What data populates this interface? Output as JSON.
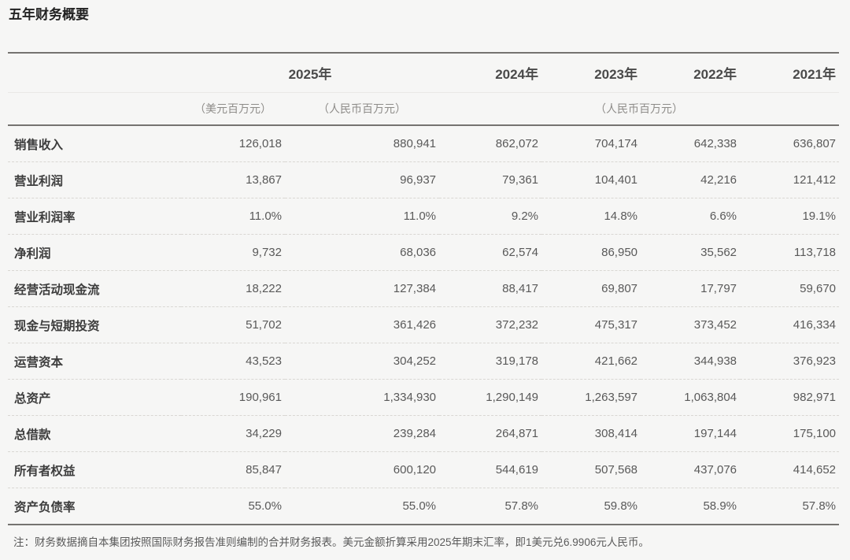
{
  "page": {
    "title": "五年财务概要"
  },
  "table": {
    "header": {
      "years": [
        "2025年",
        "2024年",
        "2023年",
        "2022年",
        "2021年"
      ],
      "units": {
        "usd": "（美元百万元）",
        "rmb_2025": "（人民币百万元）",
        "rmb_prior": "（人民币百万元）"
      }
    },
    "rows": [
      {
        "label": "销售收入",
        "values": [
          "126,018",
          "880,941",
          "862,072",
          "704,174",
          "642,338",
          "636,807"
        ]
      },
      {
        "label": "营业利润",
        "values": [
          "13,867",
          "96,937",
          "79,361",
          "104,401",
          "42,216",
          "121,412"
        ]
      },
      {
        "label": "营业利润率",
        "values": [
          "11.0%",
          "11.0%",
          "9.2%",
          "14.8%",
          "6.6%",
          "19.1%"
        ]
      },
      {
        "label": "净利润",
        "values": [
          "9,732",
          "68,036",
          "62,574",
          "86,950",
          "35,562",
          "113,718"
        ]
      },
      {
        "label": "经营活动现金流",
        "values": [
          "18,222",
          "127,384",
          "88,417",
          "69,807",
          "17,797",
          "59,670"
        ]
      },
      {
        "label": "现金与短期投资",
        "values": [
          "51,702",
          "361,426",
          "372,232",
          "475,317",
          "373,452",
          "416,334"
        ]
      },
      {
        "label": "运营资本",
        "values": [
          "43,523",
          "304,252",
          "319,178",
          "421,662",
          "344,938",
          "376,923"
        ]
      },
      {
        "label": "总资产",
        "values": [
          "190,961",
          "1,334,930",
          "1,290,149",
          "1,263,597",
          "1,063,804",
          "982,971"
        ]
      },
      {
        "label": "总借款",
        "values": [
          "34,229",
          "239,284",
          "264,871",
          "308,414",
          "197,144",
          "175,100"
        ]
      },
      {
        "label": "所有者权益",
        "values": [
          "85,847",
          "600,120",
          "544,619",
          "507,568",
          "437,076",
          "414,652"
        ]
      },
      {
        "label": "资产负债率",
        "values": [
          "55.0%",
          "55.0%",
          "57.8%",
          "59.8%",
          "58.9%",
          "57.8%"
        ]
      }
    ],
    "note": "注：财务数据摘自本集团按照国际财务报告准则编制的合并财务报表。美元金额折算采用2025年期末汇率，即1美元兑6.9906元人民币。"
  }
}
